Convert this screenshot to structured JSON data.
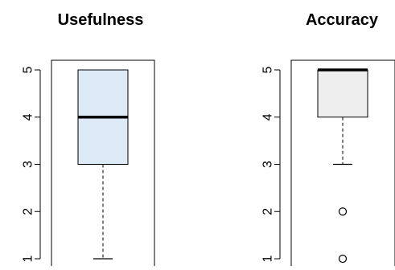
{
  "chart_data": [
    {
      "type": "boxplot",
      "title": "Usefulness",
      "ylim": [
        1,
        5
      ],
      "y_ticks": [
        "1",
        "2",
        "3",
        "4",
        "5"
      ],
      "box": {
        "min": 1,
        "q1": 3,
        "median": 4,
        "q3": 5,
        "max": 5
      },
      "outliers": [],
      "fill_color": "#dce9f6",
      "grid": false
    },
    {
      "type": "boxplot",
      "title": "Accuracy",
      "ylim": [
        1,
        5
      ],
      "y_ticks": [
        "1",
        "2",
        "3",
        "4",
        "5"
      ],
      "box": {
        "min": 3,
        "q1": 4,
        "median": 5,
        "q3": 5,
        "max": 5
      },
      "outliers": [
        2,
        1
      ],
      "fill_color": "#eeeeee",
      "grid": false
    }
  ]
}
